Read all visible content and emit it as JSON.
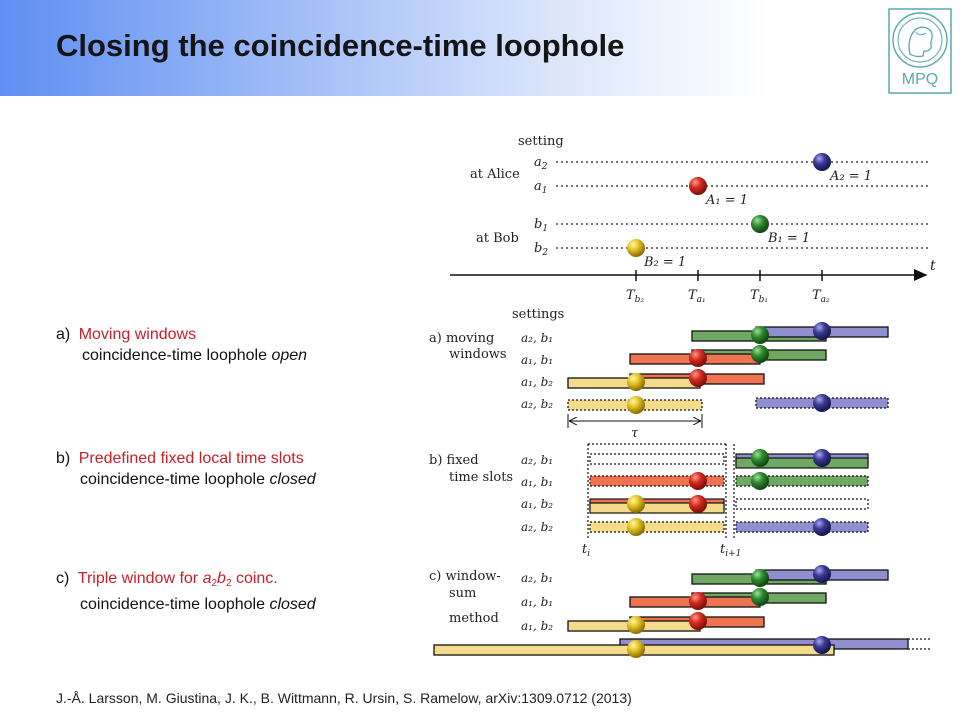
{
  "title": "Closing the coincidence-time loophole",
  "logo_text": "MPQ",
  "items": {
    "a": {
      "label": "a)",
      "heading": "Moving windows",
      "desc_prefix": "coincidence-time loophole ",
      "desc_status": "open"
    },
    "b": {
      "label": "b)",
      "heading": "Predefined fixed local time slots",
      "desc_prefix": "coincidence-time loophole ",
      "desc_status": "closed"
    },
    "c": {
      "label": "c)",
      "heading_prefix": "Triple window for ",
      "var1": "a",
      "sub1": "2",
      "var2": "b",
      "sub2": "2",
      "heading_suffix": " coinc.",
      "desc_prefix": "coincidence-time loophole ",
      "desc_status": "closed"
    }
  },
  "citation": "J.-Å. Larsson, M. Giustina, J. K., B. Wittmann, R. Ursin, S. Ramelow, arXiv:1309.0712 (2013)",
  "diagram": {
    "top_panel": {
      "setting_label": "setting",
      "alice_label": "at Alice",
      "bob_label": "at Bob",
      "a2": "a",
      "a2_sub": "2",
      "a1": "a",
      "a1_sub": "1",
      "b1": "b",
      "b1_sub": "1",
      "b2": "b",
      "b2_sub": "2",
      "t_axis": "t",
      "events": {
        "A2": "A₂ = 1",
        "A1": "A₁ = 1",
        "B1": "B₁ = 1",
        "B2": "B₂ = 1"
      },
      "ticks": [
        "T",
        "T",
        "T",
        "T"
      ],
      "tick_subs": [
        "b₂",
        "a₁",
        "b₁",
        "a₂"
      ]
    },
    "settings_label": "settings",
    "row_labels": [
      "a₂, b₁",
      "a₁, b₁",
      "a₁, b₂",
      "a₂, b₂"
    ],
    "panel_a": {
      "label_line1": "a) moving",
      "label_line2": "windows",
      "tau": "τ"
    },
    "panel_b": {
      "label_line1": "b) fixed",
      "label_line2": "time slots",
      "t_i": "t",
      "t_i_sub": "i",
      "t_i1": "t",
      "t_i1_sub": "i+1"
    },
    "panel_c": {
      "label_line1": "c) window-",
      "label_line2": "sum",
      "label_line3": "method"
    }
  },
  "colors": {
    "red": "#d63a2a",
    "green": "#2c7d2c",
    "blue": "#3a3a8c",
    "yellow": "#e0c020",
    "bar_yellow": "#f5dc8c",
    "bar_red": "#ee7350",
    "bar_green": "#6fa862",
    "bar_purple": "#8f8fd0"
  }
}
